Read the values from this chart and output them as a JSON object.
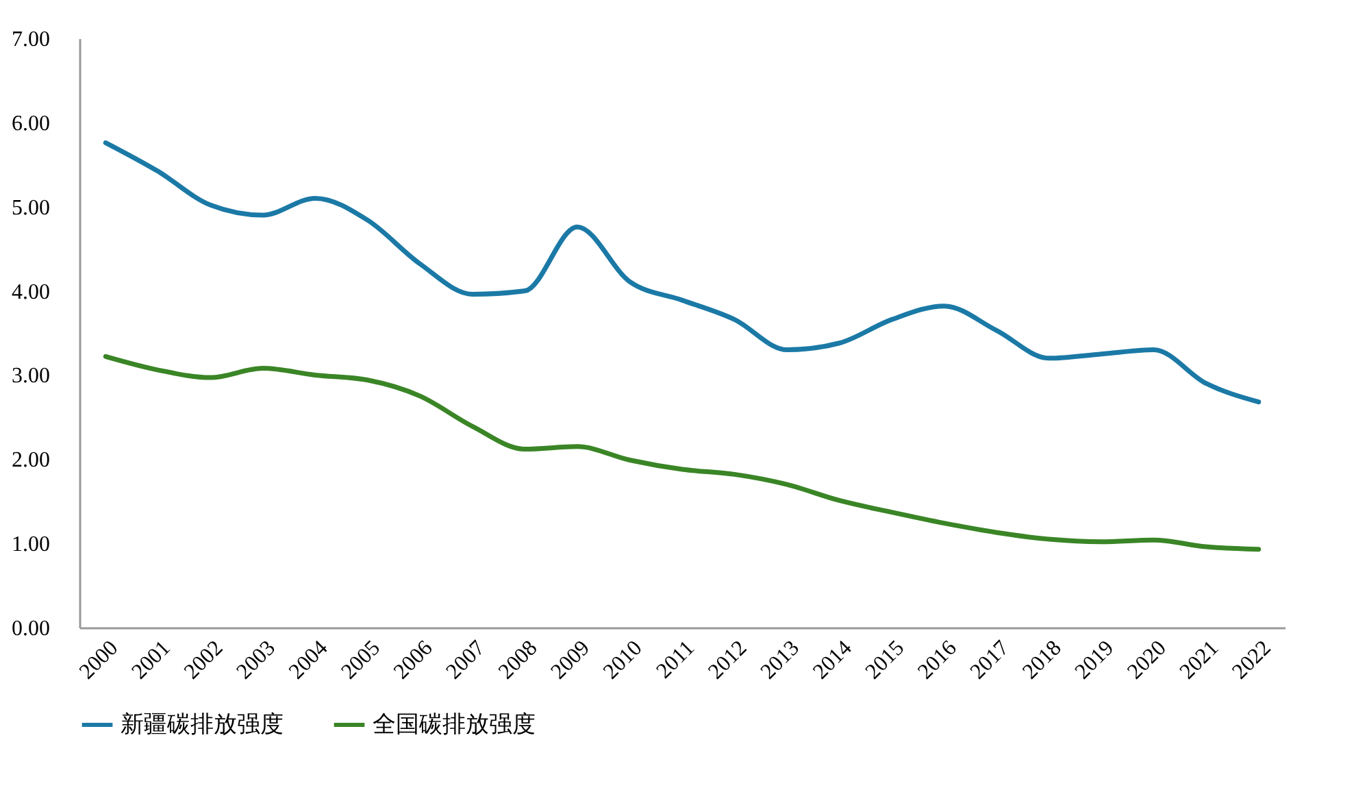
{
  "chart_data": {
    "type": "line",
    "categories": [
      "2000",
      "2001",
      "2002",
      "2003",
      "2004",
      "2005",
      "2006",
      "2007",
      "2008",
      "2009",
      "2010",
      "2011",
      "2012",
      "2013",
      "2014",
      "2015",
      "2016",
      "2017",
      "2018",
      "2019",
      "2020",
      "2021",
      "2022"
    ],
    "series": [
      {
        "name": "新疆碳排放强度",
        "color": "#1b79a6",
        "values": [
          5.76,
          5.42,
          5.02,
          4.9,
          5.1,
          4.84,
          4.32,
          3.96,
          4.0,
          4.76,
          4.11,
          3.89,
          3.66,
          3.3,
          3.38,
          3.66,
          3.82,
          3.53,
          3.2,
          3.25,
          3.3,
          2.9,
          2.68
        ]
      },
      {
        "name": "全国碳排放强度",
        "color": "#3a8526",
        "values": [
          3.22,
          3.06,
          2.97,
          3.08,
          3.0,
          2.94,
          2.75,
          2.39,
          2.12,
          2.15,
          1.99,
          1.88,
          1.82,
          1.7,
          1.51,
          1.37,
          1.24,
          1.13,
          1.05,
          1.02,
          1.04,
          0.96,
          0.93
        ]
      }
    ],
    "ylim": [
      0,
      7
    ],
    "yticks": [
      {
        "value": 0,
        "label": "0.00"
      },
      {
        "value": 1,
        "label": "1.00"
      },
      {
        "value": 2,
        "label": "2.00"
      },
      {
        "value": 3,
        "label": "3.00"
      },
      {
        "value": 4,
        "label": "4.00"
      },
      {
        "value": 5,
        "label": "5.00"
      },
      {
        "value": 6,
        "label": "6.00"
      },
      {
        "value": 7,
        "label": "7.00"
      }
    ],
    "grid": false,
    "legend": "bottom",
    "marker": "none",
    "line_style": "solid"
  }
}
